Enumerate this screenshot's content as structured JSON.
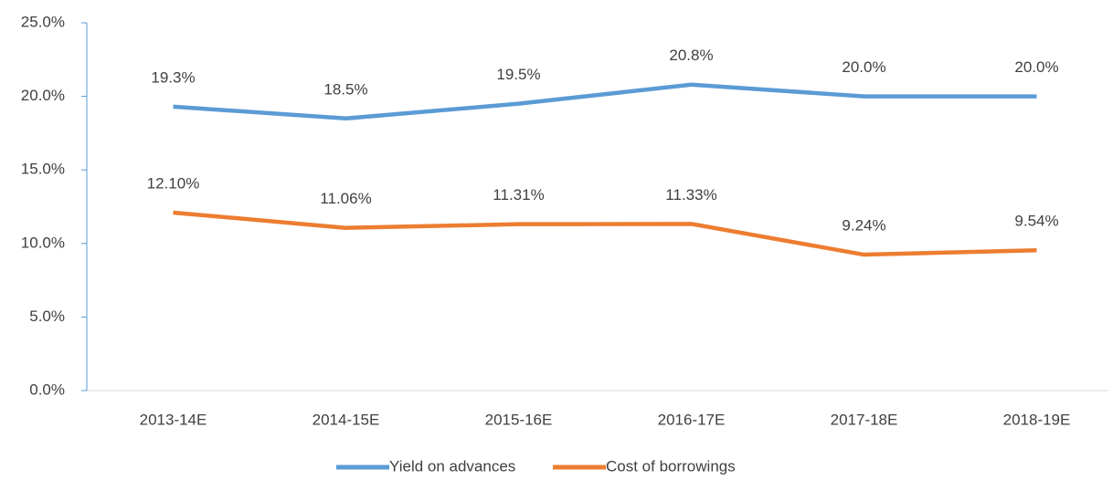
{
  "chart_data": {
    "type": "line",
    "categories": [
      "2013-14E",
      "2014-15E",
      "2015-16E",
      "2016-17E",
      "2017-18E",
      "2018-19E"
    ],
    "series": [
      {
        "name": "Yield on advances",
        "color": "#5b9bd5",
        "values": [
          19.3,
          18.5,
          19.5,
          20.8,
          20.0,
          20.0
        ],
        "value_labels": [
          "19.3%",
          "18.5%",
          "19.5%",
          "20.8%",
          "20.0%",
          "20.0%"
        ]
      },
      {
        "name": "Cost of borrowings",
        "color": "#ed7d31",
        "values": [
          12.1,
          11.06,
          11.31,
          11.33,
          9.24,
          9.54
        ],
        "value_labels": [
          "12.10%",
          "11.06%",
          "11.31%",
          "11.33%",
          "9.24%",
          "9.54%"
        ]
      }
    ],
    "ylim": [
      0,
      25
    ],
    "yticks": [
      {
        "value": 0,
        "label": "0.0%"
      },
      {
        "value": 5,
        "label": "5.0%"
      },
      {
        "value": 10,
        "label": "10.0%"
      },
      {
        "value": 15,
        "label": "15.0%"
      },
      {
        "value": 20,
        "label": "20.0%"
      },
      {
        "value": 25,
        "label": "25.0%"
      }
    ],
    "grid": false,
    "legend": "bottom"
  }
}
